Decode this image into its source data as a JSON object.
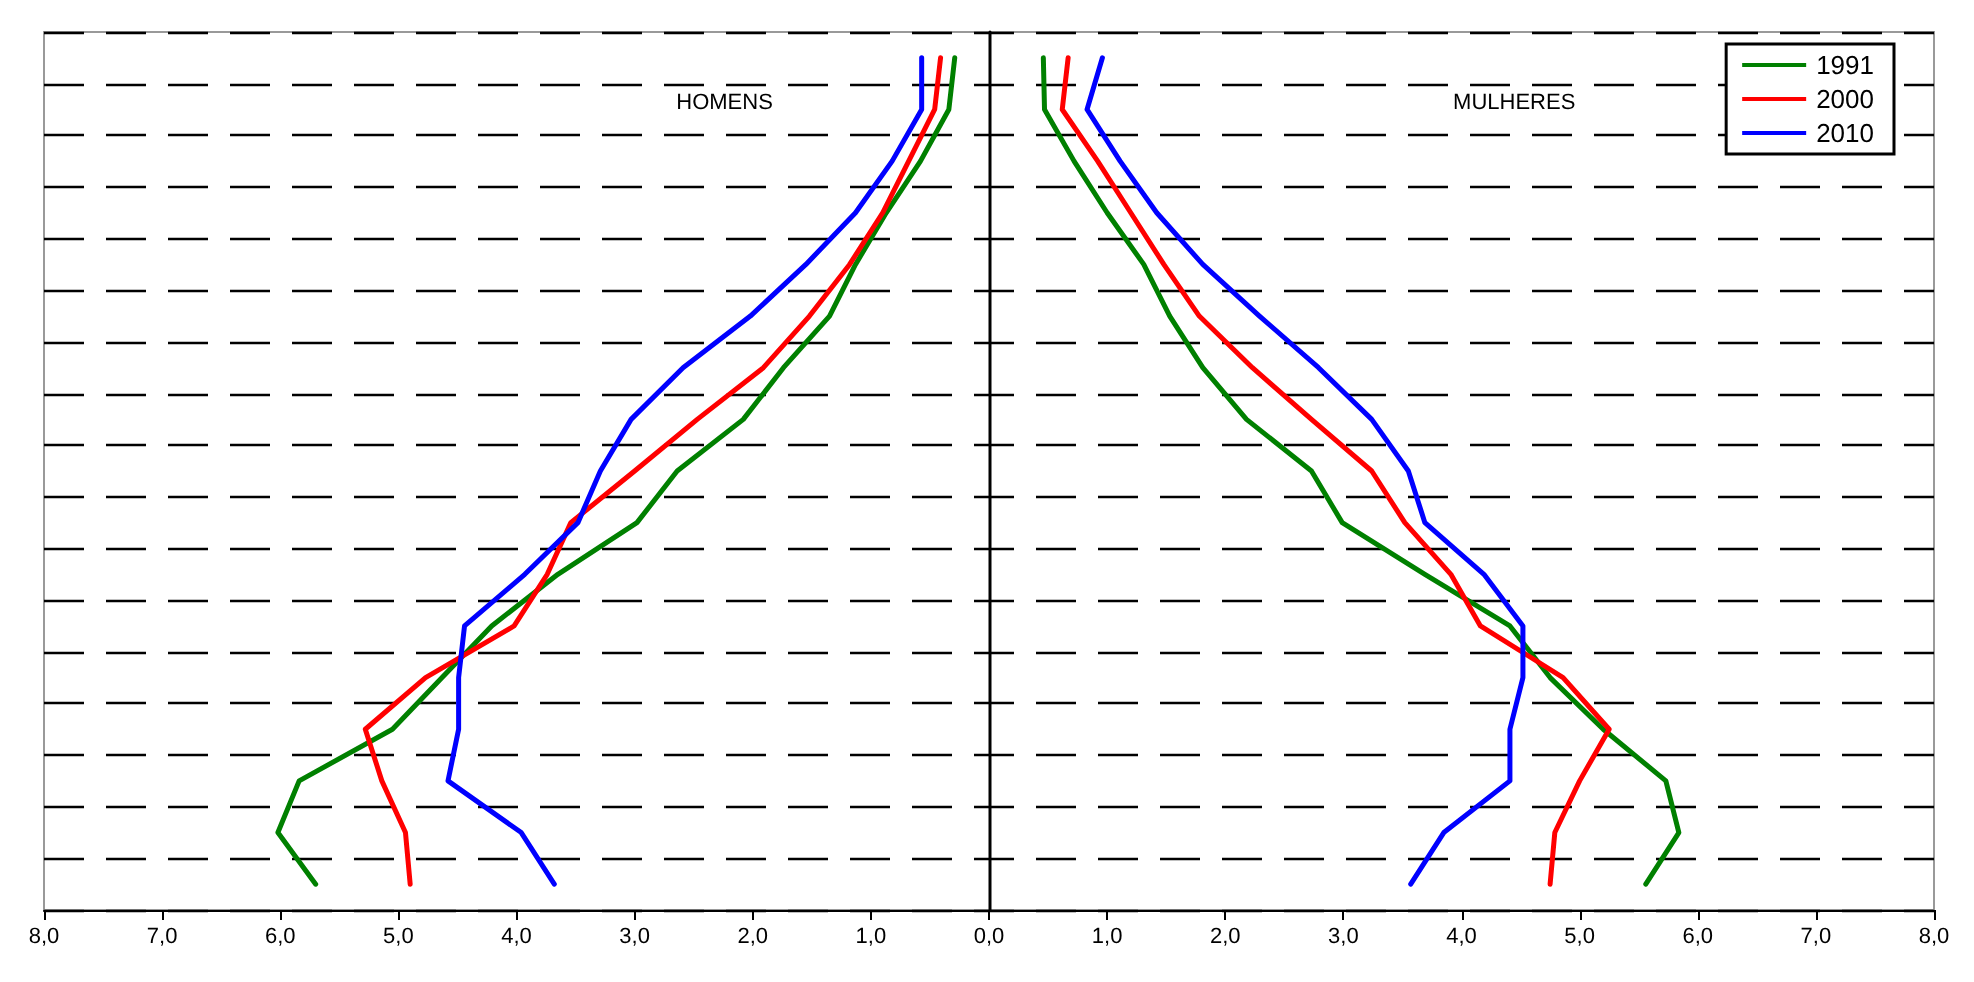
{
  "chart_data": {
    "type": "line",
    "orientation": "horizontal",
    "annotations": [
      "HOMENS",
      "MULHERES"
    ],
    "categories": [
      null,
      null,
      null,
      null,
      null,
      null,
      null,
      null,
      null,
      null,
      null,
      null,
      null,
      null,
      null,
      null,
      null
    ],
    "series": [
      {
        "name": "1991",
        "color": "#008000",
        "values": [
          -0.29,
          -0.34,
          -0.58,
          -0.87,
          -1.13,
          -1.35,
          -1.74,
          -2.08,
          -2.64,
          -2.98,
          -3.65,
          -4.21,
          -4.63,
          -5.05,
          -5.84,
          -6.02,
          -5.7
        ]
      },
      {
        "name": "2000",
        "color": "#ff0000",
        "values": [
          -0.41,
          -0.46,
          -0.68,
          -0.9,
          -1.18,
          -1.52,
          -1.91,
          -2.47,
          -3.0,
          -3.54,
          -3.74,
          -4.02,
          -4.77,
          -5.28,
          -5.14,
          -4.94,
          -4.9
        ]
      },
      {
        "name": "2010",
        "color": "#0000ff",
        "values": [
          -0.57,
          -0.57,
          -0.82,
          -1.13,
          -1.55,
          -2.02,
          -2.59,
          -3.03,
          -3.29,
          -3.48,
          -3.93,
          -4.44,
          -4.49,
          -4.49,
          -4.58,
          -3.96,
          -3.68
        ]
      },
      {
        "color": "#008000",
        "values": [
          0.46,
          0.47,
          0.72,
          1.0,
          1.31,
          1.53,
          1.81,
          2.18,
          2.73,
          2.99,
          3.69,
          4.41,
          4.75,
          5.2,
          5.73,
          5.84,
          5.56
        ]
      },
      {
        "color": "#ff0000",
        "values": [
          0.67,
          0.62,
          0.92,
          1.2,
          1.48,
          1.78,
          2.23,
          2.73,
          3.24,
          3.52,
          3.91,
          4.16,
          4.86,
          5.25,
          5.0,
          4.79,
          4.75
        ]
      },
      {
        "color": "#0000ff",
        "values": [
          0.96,
          0.83,
          1.11,
          1.42,
          1.81,
          2.29,
          2.79,
          3.24,
          3.55,
          3.69,
          4.19,
          4.52,
          4.52,
          4.41,
          4.41,
          3.85,
          3.57
        ]
      }
    ],
    "xlim": [
      -8,
      8
    ],
    "xticks": [
      {
        "value": -8,
        "label": "8,0"
      },
      {
        "value": -7,
        "label": "7,0"
      },
      {
        "value": -6,
        "label": "6,0"
      },
      {
        "value": -5,
        "label": "5,0"
      },
      {
        "value": -4,
        "label": "4,0"
      },
      {
        "value": -3,
        "label": "3,0"
      },
      {
        "value": -2,
        "label": "2,0"
      },
      {
        "value": -1,
        "label": "1,0"
      },
      {
        "value": 0,
        "label": "0,0"
      },
      {
        "value": 1,
        "label": "1,0"
      },
      {
        "value": 2,
        "label": "2,0"
      },
      {
        "value": 3,
        "label": "3,0"
      },
      {
        "value": 4,
        "label": "4,0"
      },
      {
        "value": 5,
        "label": "5,0"
      },
      {
        "value": 6,
        "label": "6,0"
      },
      {
        "value": 7,
        "label": "7,0"
      },
      {
        "value": 8,
        "label": "8,0"
      }
    ],
    "grid": "y",
    "legend": "top right",
    "tick_labels": "x",
    "marker": "none",
    "line_style": "solid"
  }
}
